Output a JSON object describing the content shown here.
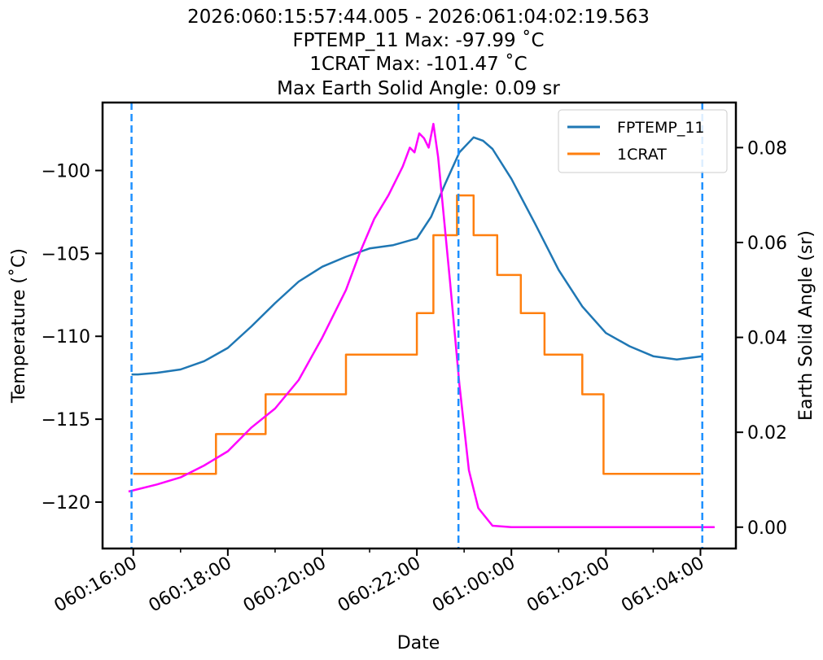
{
  "chart_data": {
    "type": "line",
    "title_lines": [
      "2026:060:15:57:44.005 - 2026:061:04:02:19.563",
      "FPTEMP_11 Max: -97.99 ˚C",
      "1CRAT Max: -101.47 ˚C",
      "Max Earth Solid Angle: 0.09 sr"
    ],
    "xlabel": "Date",
    "ylabel": "Temperature (˚C)",
    "y2label": "Earth Solid Angle (sr)",
    "x_units": "hours since 060:15:00",
    "xlim": [
      0.35,
      13.75
    ],
    "ylim": [
      -122.8,
      -95.9
    ],
    "y2lim": [
      -0.0045,
      0.0895
    ],
    "x_ticks": [
      {
        "value": 1,
        "label": "060:16:00"
      },
      {
        "value": 3,
        "label": "060:18:00"
      },
      {
        "value": 5,
        "label": "060:20:00"
      },
      {
        "value": 7,
        "label": "060:22:00"
      },
      {
        "value": 9,
        "label": "061:00:00"
      },
      {
        "value": 11,
        "label": "061:02:00"
      },
      {
        "value": 13,
        "label": "061:04:00"
      }
    ],
    "x_minor_ticks": [
      2,
      4,
      6,
      8,
      10,
      12
    ],
    "y_ticks": [
      {
        "value": -100,
        "label": "−100"
      },
      {
        "value": -105,
        "label": "−105"
      },
      {
        "value": -110,
        "label": "−110"
      },
      {
        "value": -115,
        "label": "−115"
      },
      {
        "value": -120,
        "label": "−120"
      }
    ],
    "y2_ticks": [
      {
        "value": 0.08,
        "label": "0.08"
      },
      {
        "value": 0.06,
        "label": "0.06"
      },
      {
        "value": 0.04,
        "label": "0.04"
      },
      {
        "value": 0.02,
        "label": "0.02"
      },
      {
        "value": 0.0,
        "label": "0.00"
      }
    ],
    "vlines": [
      0.963,
      7.88,
      13.039
    ],
    "legend": {
      "position": "top-right",
      "entries": [
        "FPTEMP_11",
        "1CRAT"
      ]
    },
    "colors": {
      "fptemp": "#1f77b4",
      "crat": "#ff7f0e",
      "earth": "#ff00ff",
      "vline": "#1e90ff"
    },
    "series": [
      {
        "name": "FPTEMP_11",
        "axis": "left",
        "x": [
          0.963,
          1.1,
          1.5,
          2.0,
          2.5,
          3.0,
          3.5,
          4.0,
          4.5,
          5.0,
          5.5,
          6.0,
          6.5,
          7.0,
          7.3,
          7.6,
          7.9,
          8.2,
          8.4,
          8.6,
          9.0,
          9.5,
          10.0,
          10.5,
          11.0,
          11.5,
          12.0,
          12.5,
          13.039
        ],
        "y": [
          -112.3,
          -112.3,
          -112.2,
          -112.0,
          -111.5,
          -110.7,
          -109.4,
          -108.0,
          -106.7,
          -105.8,
          -105.2,
          -104.7,
          -104.5,
          -104.1,
          -102.8,
          -100.8,
          -98.9,
          -98.0,
          -98.2,
          -98.7,
          -100.5,
          -103.2,
          -106.0,
          -108.2,
          -109.8,
          -110.6,
          -111.2,
          -111.4,
          -111.2
        ]
      },
      {
        "name": "1CRAT",
        "axis": "left",
        "x": [
          1.0,
          2.75,
          2.75,
          3.8,
          3.8,
          5.5,
          5.5,
          7.0,
          7.0,
          7.35,
          7.35,
          7.85,
          7.85,
          8.2,
          8.2,
          8.7,
          8.7,
          9.2,
          9.2,
          9.7,
          9.7,
          10.5,
          10.5,
          10.95,
          10.95,
          13.0
        ],
        "y": [
          -118.3,
          -118.3,
          -115.9,
          -115.9,
          -113.5,
          -113.5,
          -111.1,
          -111.1,
          -108.6,
          -108.6,
          -103.9,
          -103.9,
          -101.5,
          -101.5,
          -103.9,
          -103.9,
          -106.3,
          -106.3,
          -108.6,
          -108.6,
          -111.1,
          -111.1,
          -113.5,
          -113.5,
          -118.3,
          -118.3
        ]
      },
      {
        "name": "Earth Solid Angle",
        "axis": "right",
        "x": [
          0.9,
          1.5,
          2.0,
          2.5,
          3.0,
          3.5,
          4.0,
          4.5,
          5.0,
          5.5,
          5.8,
          6.1,
          6.4,
          6.7,
          6.85,
          6.95,
          7.05,
          7.15,
          7.25,
          7.35,
          7.45,
          7.7,
          7.9,
          8.1,
          8.3,
          8.6,
          9.0,
          10.0,
          11.0,
          12.0,
          13.0,
          13.3
        ],
        "y": [
          0.0075,
          0.009,
          0.0105,
          0.013,
          0.016,
          0.021,
          0.025,
          0.031,
          0.04,
          0.05,
          0.058,
          0.065,
          0.07,
          0.076,
          0.08,
          0.079,
          0.083,
          0.082,
          0.08,
          0.085,
          0.078,
          0.052,
          0.03,
          0.012,
          0.004,
          0.0003,
          0.0,
          0.0,
          0.0,
          0.0,
          0.0,
          0.0
        ]
      }
    ]
  }
}
